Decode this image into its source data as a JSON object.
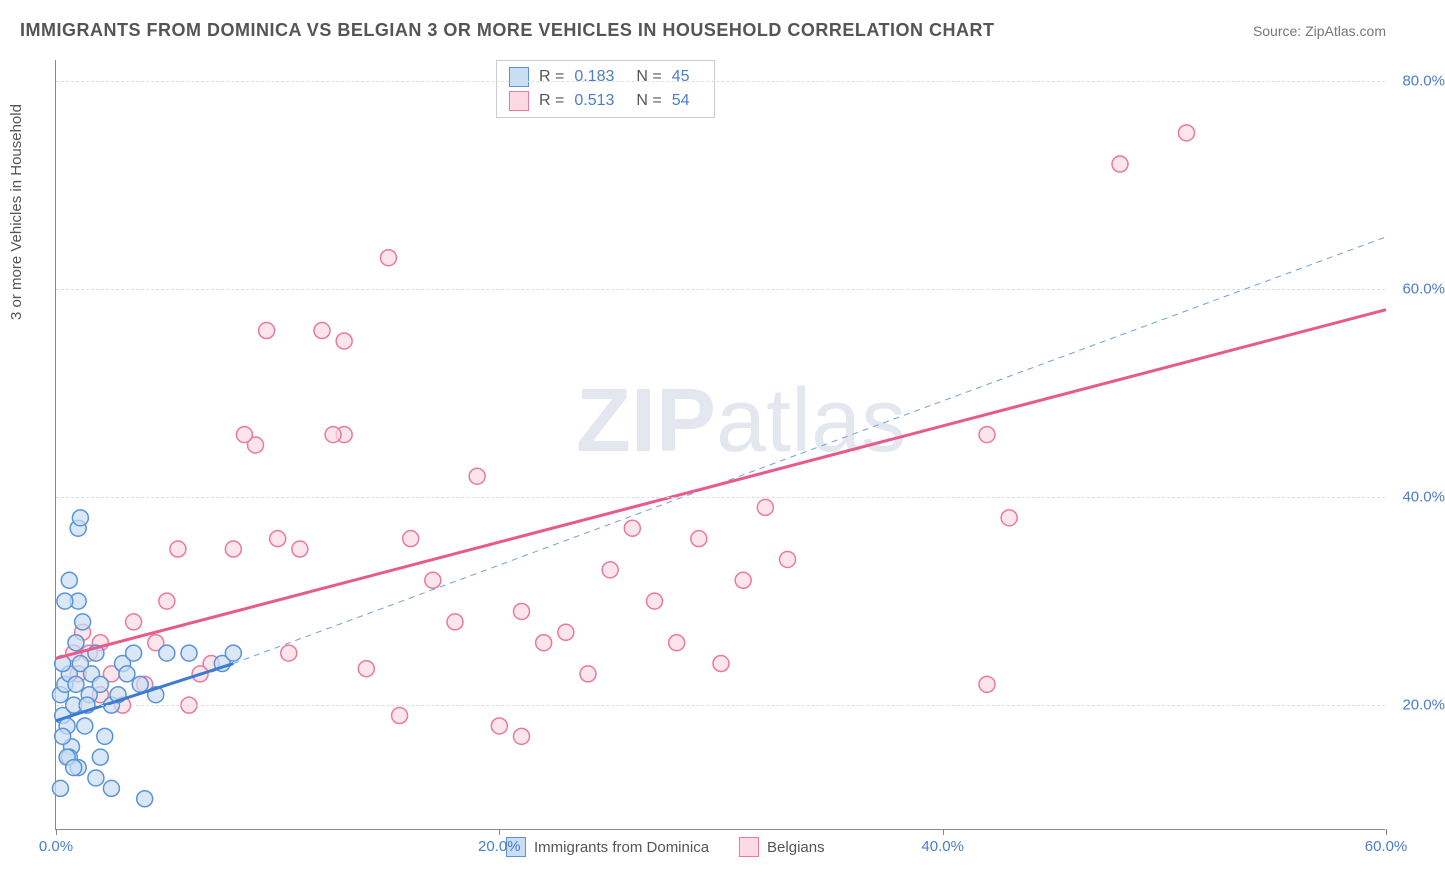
{
  "title": "IMMIGRANTS FROM DOMINICA VS BELGIAN 3 OR MORE VEHICLES IN HOUSEHOLD CORRELATION CHART",
  "source": "Source: ZipAtlas.com",
  "y_axis_label": "3 or more Vehicles in Household",
  "watermark_bold": "ZIP",
  "watermark_light": "atlas",
  "chart": {
    "type": "scatter",
    "xlim": [
      0,
      60
    ],
    "ylim": [
      8,
      82
    ],
    "x_ticks": [
      0,
      20,
      40,
      60
    ],
    "x_tick_labels": [
      "0.0%",
      "20.0%",
      "40.0%",
      "60.0%"
    ],
    "y_ticks": [
      20,
      40,
      60,
      80
    ],
    "y_tick_labels": [
      "20.0%",
      "40.0%",
      "60.0%",
      "80.0%"
    ],
    "grid_color": "#dddddd",
    "background_color": "#ffffff",
    "marker_radius": 8,
    "marker_stroke_width": 1.5,
    "series": [
      {
        "name": "Immigrants from Dominica",
        "fill": "#c9ddf3",
        "stroke": "#5a94d8",
        "R_label": "R =",
        "R": "0.183",
        "N_label": "N =",
        "N": "45",
        "trend": {
          "x1": 0,
          "y1": 18.5,
          "x2": 8,
          "y2": 24,
          "solid": true,
          "width": 3,
          "color": "#3a7bd5"
        },
        "trend_ext": {
          "x1": 8,
          "y1": 24,
          "x2": 60,
          "y2": 65,
          "dash": "6,5",
          "width": 1,
          "color": "#6fa0de"
        },
        "points": [
          [
            0.2,
            21
          ],
          [
            0.3,
            19
          ],
          [
            0.5,
            18
          ],
          [
            0.4,
            22
          ],
          [
            0.8,
            20
          ],
          [
            0.6,
            23
          ],
          [
            1.0,
            30
          ],
          [
            1.2,
            28
          ],
          [
            0.9,
            26
          ],
          [
            1.1,
            24
          ],
          [
            1.3,
            18
          ],
          [
            1.5,
            21
          ],
          [
            0.7,
            16
          ],
          [
            0.6,
            15
          ],
          [
            1.0,
            14
          ],
          [
            1.8,
            13
          ],
          [
            2.0,
            15
          ],
          [
            2.2,
            17
          ],
          [
            1.4,
            20
          ],
          [
            1.6,
            23
          ],
          [
            1.8,
            25
          ],
          [
            2.0,
            22
          ],
          [
            2.5,
            20
          ],
          [
            2.8,
            21
          ],
          [
            3.0,
            24
          ],
          [
            3.2,
            23
          ],
          [
            3.5,
            25
          ],
          [
            0.3,
            17
          ],
          [
            0.5,
            15
          ],
          [
            0.8,
            14
          ],
          [
            4.0,
            11
          ],
          [
            2.5,
            12
          ],
          [
            0.2,
            12
          ],
          [
            1.0,
            37
          ],
          [
            1.1,
            38
          ],
          [
            0.4,
            30
          ],
          [
            0.6,
            32
          ],
          [
            6.0,
            25
          ],
          [
            7.5,
            24
          ],
          [
            8.0,
            25
          ],
          [
            5.0,
            25
          ],
          [
            3.8,
            22
          ],
          [
            4.5,
            21
          ],
          [
            0.3,
            24
          ],
          [
            0.9,
            22
          ]
        ]
      },
      {
        "name": "Belgians",
        "fill": "#fbdae3",
        "stroke": "#e97a9c",
        "R_label": "R =",
        "R": "0.513",
        "N_label": "N =",
        "N": "54",
        "trend": {
          "x1": 0,
          "y1": 24.5,
          "x2": 60,
          "y2": 58,
          "solid": true,
          "width": 3,
          "color": "#e85a8a"
        },
        "points": [
          [
            2.0,
            26
          ],
          [
            3.0,
            20
          ],
          [
            4.0,
            22
          ],
          [
            5.0,
            30
          ],
          [
            6.0,
            20
          ],
          [
            7.0,
            24
          ],
          [
            8.0,
            35
          ],
          [
            9.0,
            45
          ],
          [
            10.0,
            36
          ],
          [
            12.0,
            56
          ],
          [
            13.0,
            46
          ],
          [
            14.0,
            23.5
          ],
          [
            15.0,
            63
          ],
          [
            16.0,
            36
          ],
          [
            17.0,
            32
          ],
          [
            18.0,
            28
          ],
          [
            19.0,
            42
          ],
          [
            20.0,
            18
          ],
          [
            21.0,
            29
          ],
          [
            22.0,
            26
          ],
          [
            23.0,
            27
          ],
          [
            24.0,
            23
          ],
          [
            25.0,
            33
          ],
          [
            26.0,
            37
          ],
          [
            27.0,
            30
          ],
          [
            28.0,
            26
          ],
          [
            29.0,
            36
          ],
          [
            30.0,
            24
          ],
          [
            31.0,
            32
          ],
          [
            32.0,
            39
          ],
          [
            33.0,
            34
          ],
          [
            42.0,
            46
          ],
          [
            42.0,
            22
          ],
          [
            43.0,
            38
          ],
          [
            48.0,
            72
          ],
          [
            51.0,
            75
          ],
          [
            13.0,
            55
          ],
          [
            8.5,
            46
          ],
          [
            11.0,
            35
          ],
          [
            21.0,
            17
          ],
          [
            15.5,
            19
          ],
          [
            6.5,
            23
          ],
          [
            5.5,
            35
          ],
          [
            4.5,
            26
          ],
          [
            3.5,
            28
          ],
          [
            2.5,
            23
          ],
          [
            1.5,
            25
          ],
          [
            1.0,
            23
          ],
          [
            2.0,
            21
          ],
          [
            1.2,
            27
          ],
          [
            0.8,
            25
          ],
          [
            10.5,
            25
          ],
          [
            9.5,
            56
          ],
          [
            12.5,
            46
          ]
        ]
      }
    ]
  },
  "legend": {
    "items": [
      {
        "label": "Immigrants from Dominica",
        "fill": "#c9ddf3",
        "stroke": "#5a94d8"
      },
      {
        "label": "Belgians",
        "fill": "#fbdae3",
        "stroke": "#e97a9c"
      }
    ]
  }
}
